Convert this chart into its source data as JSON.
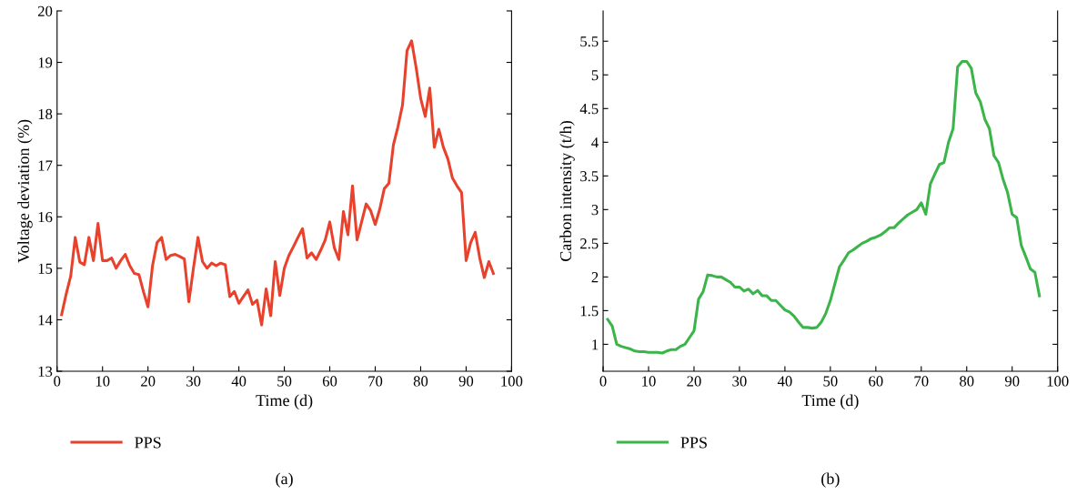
{
  "chart_data": [
    {
      "type": "line",
      "xlabel": "Time (d)",
      "ylabel": "Voltage deviation (%)",
      "annotations": [
        "(a)"
      ],
      "x": [
        1,
        2,
        3,
        4,
        5,
        6,
        7,
        8,
        9,
        10,
        11,
        12,
        13,
        14,
        15,
        16,
        17,
        18,
        19,
        20,
        21,
        22,
        23,
        24,
        25,
        26,
        27,
        28,
        29,
        30,
        31,
        32,
        33,
        34,
        35,
        36,
        37,
        38,
        39,
        40,
        41,
        42,
        43,
        44,
        45,
        46,
        47,
        48,
        49,
        50,
        51,
        52,
        53,
        54,
        55,
        56,
        57,
        58,
        59,
        60,
        61,
        62,
        63,
        64,
        65,
        66,
        67,
        68,
        69,
        70,
        71,
        72,
        73,
        74,
        75,
        76,
        77,
        78,
        79,
        80,
        81,
        82,
        83,
        84,
        85,
        86,
        87,
        88,
        89,
        90,
        91,
        92,
        93,
        94,
        95,
        96
      ],
      "series": [
        {
          "name": "PPS",
          "color": "#e8412c",
          "values": [
            14.1,
            14.5,
            14.85,
            15.6,
            15.12,
            15.07,
            15.6,
            15.15,
            15.87,
            15.15,
            15.15,
            15.2,
            15.0,
            15.15,
            15.27,
            15.05,
            14.9,
            14.88,
            14.55,
            14.25,
            15.05,
            15.5,
            15.6,
            15.17,
            15.25,
            15.27,
            15.23,
            15.18,
            14.35,
            15.0,
            15.6,
            15.13,
            15.0,
            15.1,
            15.05,
            15.1,
            15.07,
            14.45,
            14.55,
            14.32,
            14.45,
            14.58,
            14.3,
            14.38,
            13.9,
            14.6,
            14.08,
            15.13,
            14.47,
            15.0,
            15.25,
            15.42,
            15.6,
            15.77,
            15.2,
            15.3,
            15.17,
            15.35,
            15.55,
            15.9,
            15.4,
            15.17,
            16.1,
            15.65,
            16.6,
            15.55,
            15.9,
            16.25,
            16.12,
            15.85,
            16.15,
            16.55,
            16.65,
            17.4,
            17.75,
            18.17,
            19.23,
            19.42,
            18.9,
            18.3,
            17.95,
            18.5,
            17.35,
            17.7,
            17.35,
            17.12,
            16.75,
            16.6,
            16.47,
            15.15,
            15.5,
            15.7,
            15.2,
            14.82,
            15.13,
            14.9
          ]
        }
      ],
      "xlim": [
        0,
        100
      ],
      "xticks": [
        0,
        10,
        20,
        30,
        40,
        50,
        60,
        70,
        80,
        90,
        100
      ],
      "ylim": [
        13,
        20
      ],
      "yticks": [
        13,
        14,
        15,
        16,
        17,
        18,
        19,
        20
      ],
      "grid": false,
      "legend": "bottom",
      "marker": "none",
      "line_style": "solid"
    },
    {
      "type": "line",
      "xlabel": "Time (d)",
      "ylabel": "Carbon intensity (t/h)",
      "annotations": [
        "(b)"
      ],
      "x": [
        1,
        2,
        3,
        4,
        5,
        6,
        7,
        8,
        9,
        10,
        11,
        12,
        13,
        14,
        15,
        16,
        17,
        18,
        19,
        20,
        21,
        22,
        23,
        24,
        25,
        26,
        27,
        28,
        29,
        30,
        31,
        32,
        33,
        34,
        35,
        36,
        37,
        38,
        39,
        40,
        41,
        42,
        43,
        44,
        45,
        46,
        47,
        48,
        49,
        50,
        51,
        52,
        53,
        54,
        55,
        56,
        57,
        58,
        59,
        60,
        61,
        62,
        63,
        64,
        65,
        66,
        67,
        68,
        69,
        70,
        71,
        72,
        73,
        74,
        75,
        76,
        77,
        78,
        79,
        80,
        81,
        82,
        83,
        84,
        85,
        86,
        87,
        88,
        89,
        90,
        91,
        92,
        93,
        94,
        95,
        96
      ],
      "series": [
        {
          "name": "PPS",
          "color": "#3bb54a",
          "values": [
            1.37,
            1.27,
            1.0,
            0.97,
            0.95,
            0.93,
            0.9,
            0.89,
            0.89,
            0.88,
            0.88,
            0.88,
            0.87,
            0.9,
            0.92,
            0.92,
            0.97,
            1.0,
            1.1,
            1.2,
            1.67,
            1.78,
            2.03,
            2.02,
            2.0,
            2.0,
            1.96,
            1.92,
            1.85,
            1.85,
            1.79,
            1.82,
            1.75,
            1.8,
            1.72,
            1.72,
            1.65,
            1.65,
            1.58,
            1.51,
            1.48,
            1.42,
            1.33,
            1.25,
            1.25,
            1.24,
            1.25,
            1.33,
            1.46,
            1.65,
            1.9,
            2.15,
            2.25,
            2.36,
            2.4,
            2.45,
            2.5,
            2.53,
            2.57,
            2.59,
            2.62,
            2.67,
            2.73,
            2.73,
            2.8,
            2.86,
            2.92,
            2.96,
            3.0,
            3.1,
            2.93,
            3.38,
            3.53,
            3.67,
            3.7,
            4.0,
            4.2,
            5.12,
            5.2,
            5.2,
            5.1,
            4.73,
            4.6,
            4.34,
            4.2,
            3.8,
            3.7,
            3.45,
            3.25,
            2.93,
            2.88,
            2.47,
            2.3,
            2.12,
            2.07,
            1.72
          ]
        }
      ],
      "xlim": [
        0,
        100
      ],
      "xticks": [
        0,
        10,
        20,
        30,
        40,
        50,
        60,
        70,
        80,
        90,
        100
      ],
      "ylim": [
        0.6,
        5.95
      ],
      "yticks": [
        1,
        1.5,
        2,
        2.5,
        3,
        3.5,
        4,
        4.5,
        5,
        5.5
      ],
      "grid": false,
      "legend": "bottom",
      "marker": "none",
      "line_style": "solid"
    }
  ]
}
